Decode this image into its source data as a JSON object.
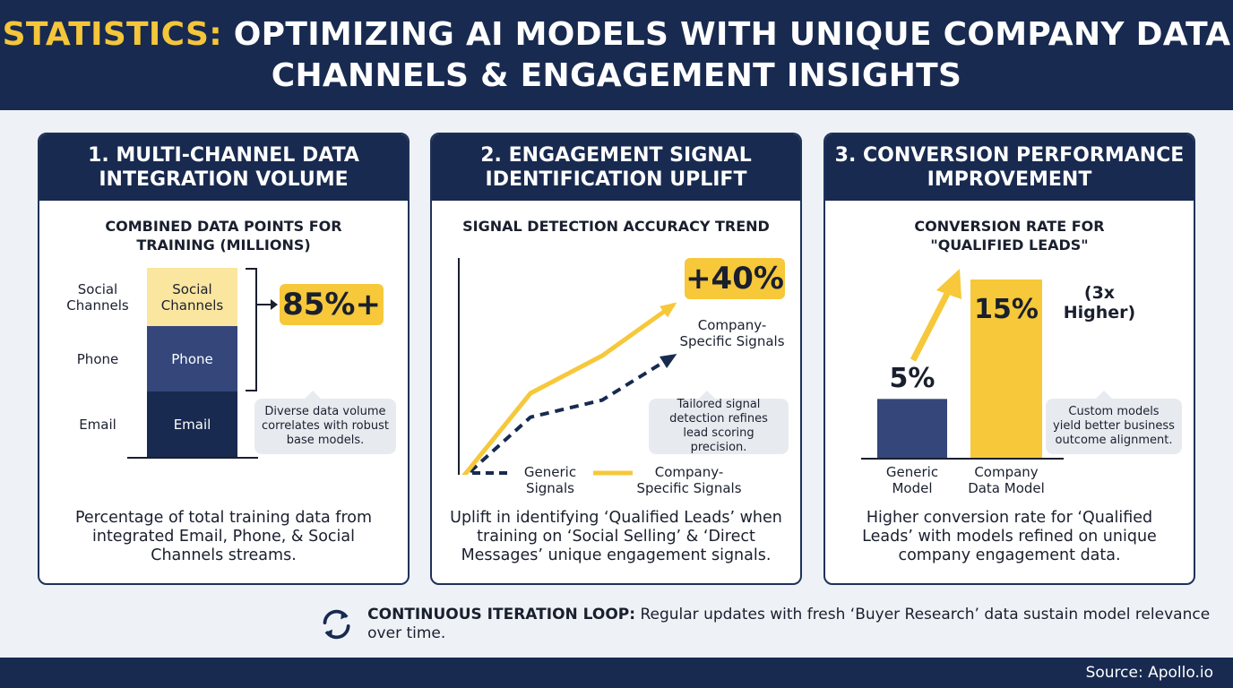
{
  "header": {
    "title_accent": "STATISTICS:",
    "title_rest_1": "OPTIMIZING AI MODELS WITH UNIQUE COMPANY DATA",
    "title_line_2": "CHANNELS & ENGAGEMENT INSIGHTS"
  },
  "panels": [
    {
      "heading": "1. MULTI-CHANNEL DATA\nINTEGRATION VOLUME",
      "subtitle": "COMBINED DATA POINTS FOR\nTRAINING (MILLIONS)",
      "highlight": "85%+",
      "callout": "Diverse data volume correlates with robust base models.",
      "footer": "Percentage of total training data from integrated Email, Phone, & Social Channels streams."
    },
    {
      "heading": "2. ENGAGEMENT SIGNAL\nIDENTIFICATION UPLIFT",
      "subtitle": "SIGNAL DETECTION ACCURACY TREND",
      "highlight": "+40%",
      "series_label": "Company-\nSpecific Signals",
      "callout": "Tailored signal detection refines lead scoring precision.",
      "footer": "Uplift in identifying ‘Qualified Leads’ when training on ‘Social Selling’ & ‘Direct Messages’ unique engagement signals."
    },
    {
      "heading": "3. CONVERSION PERFORMANCE\nIMPROVEMENT",
      "subtitle": "CONVERSION RATE FOR\n\"QUALIFIED LEADS\"",
      "highlight_note": "(3x Higher)",
      "callout": "Custom models yield better business outcome alignment.",
      "footer": "Higher conversion rate for ‘Qualified Leads’ with models refined on unique company engagement data."
    }
  ],
  "loop": {
    "label": "CONTINUOUS ITERATION LOOP:",
    "text": " Regular updates with fresh ‘Buyer Research’ data sustain model relevance over time.",
    "icon": "refresh-icon"
  },
  "source": "Source: Apollo.io",
  "colors": {
    "navy": "#182a50",
    "yellow": "#f6c83a",
    "light_yellow": "#fbe6a0",
    "mid_navy": "#34467a"
  },
  "chart_data": [
    {
      "type": "bar",
      "title": "COMBINED DATA POINTS FOR TRAINING (MILLIONS)",
      "stacked": true,
      "categories": [
        "Email",
        "Phone",
        "Social Channels"
      ],
      "category_labels": [
        "Email",
        "Phone",
        "Social\nChannels"
      ],
      "values": [
        73,
        73,
        65
      ],
      "colors": [
        "#182a50",
        "#34467a",
        "#fbe6a0"
      ],
      "annotation": "85%+"
    },
    {
      "type": "line",
      "title": "SIGNAL DETECTION ACCURACY TREND",
      "x": [
        0,
        1,
        2,
        3
      ],
      "series": [
        {
          "name": "Generic\nSignals",
          "values": [
            0,
            38,
            48,
            74
          ],
          "style": "dashed",
          "color": "#182a50"
        },
        {
          "name": "Company-\nSpecific Signals",
          "values": [
            0,
            52,
            74,
            104
          ],
          "style": "solid",
          "color": "#f6c83a"
        }
      ],
      "annotation": "+40%"
    },
    {
      "type": "bar",
      "title": "CONVERSION RATE FOR \"QUALIFIED LEADS\"",
      "categories": [
        "Generic\nModel",
        "Company\nData Model"
      ],
      "values": [
        5,
        15
      ],
      "value_labels": [
        "5%",
        "15%"
      ],
      "colors": [
        "#34467a",
        "#f6c83a"
      ],
      "annotation": "(3x Higher)"
    }
  ]
}
